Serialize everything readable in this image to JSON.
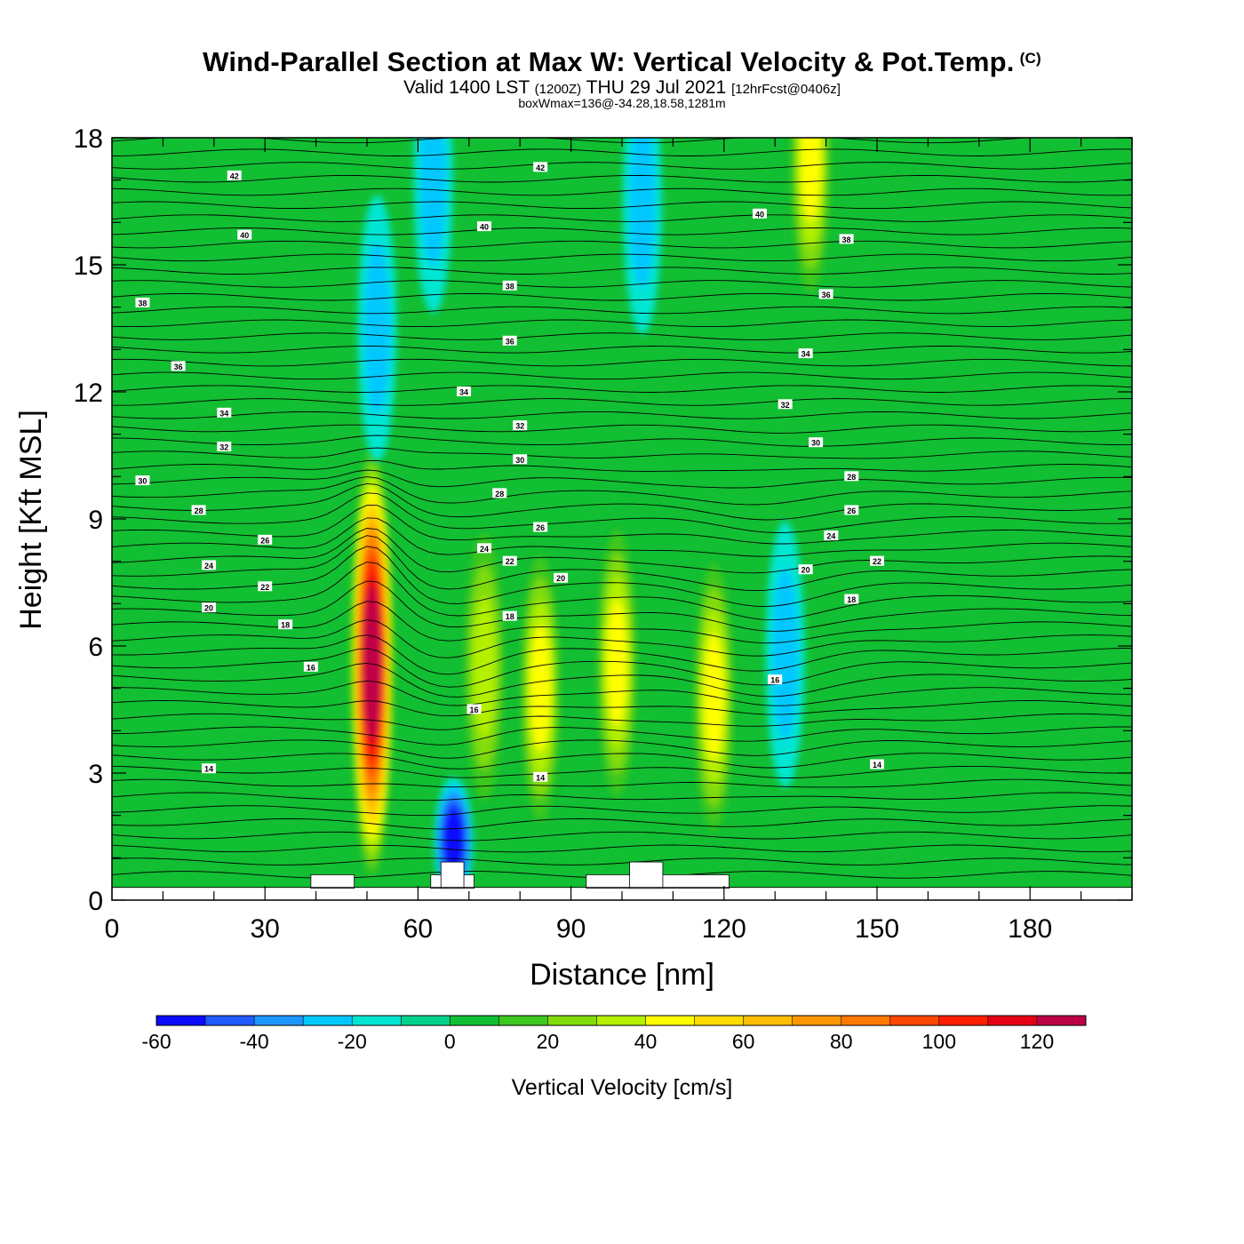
{
  "header": {
    "title": "Wind-Parallel Section at Max W: Vertical Velocity & Pot.Temp.",
    "copyright_mark": "(C)",
    "valid_prefix": "Valid 1400 LST",
    "valid_zulu": "(1200Z)",
    "valid_date": "THU 29 Jul 2021",
    "forecast": "[12hrFcst@0406z]",
    "box_wmax": "boxWmax=136@-34.28,18.58,1281m"
  },
  "chart_data": {
    "type": "heatmap",
    "xlabel": "Distance [nm]",
    "ylabel": "Height [Kft MSL]",
    "xlim": [
      0,
      200
    ],
    "ylim": [
      0,
      18
    ],
    "xticks": [
      0,
      30,
      60,
      90,
      120,
      150,
      180
    ],
    "yticks": [
      0,
      3,
      6,
      9,
      12,
      15,
      18
    ],
    "colorbar": {
      "title": "Vertical Velocity [cm/s]",
      "levels": [
        -60,
        -50,
        -40,
        -30,
        -20,
        -10,
        0,
        10,
        20,
        30,
        40,
        50,
        60,
        70,
        80,
        90,
        100,
        110,
        120,
        130
      ],
      "tick_labels": [
        -60,
        -40,
        -20,
        0,
        20,
        40,
        60,
        80,
        100,
        120
      ],
      "colors": [
        "#0a0aff",
        "#1e5aff",
        "#1e96ff",
        "#00c8ff",
        "#00e6d2",
        "#00d28c",
        "#12be32",
        "#3cc81e",
        "#82dc0a",
        "#b4f000",
        "#ffff00",
        "#ffdc00",
        "#ffbe00",
        "#ff9600",
        "#ff7800",
        "#ff4600",
        "#ff1e00",
        "#e60014",
        "#be0046"
      ]
    },
    "background_w": 0,
    "w_features": [
      {
        "x": 51,
        "y": 5.6,
        "w_max": 120
      },
      {
        "x": 67,
        "y": 1.4,
        "w_min": -60
      },
      {
        "x": 84,
        "y": 5.0,
        "w_max": 40
      },
      {
        "x": 99,
        "y": 5.6,
        "w_max": 40
      },
      {
        "x": 118,
        "y": 4.8,
        "w_max": 40
      },
      {
        "x": 137,
        "y": 17.5,
        "w_max": 40
      },
      {
        "x": 73,
        "y": 5.5,
        "w_max": 30
      },
      {
        "x": 52,
        "y": 13.5,
        "w_min": -20
      },
      {
        "x": 63,
        "y": 17.0,
        "w_min": -20
      },
      {
        "x": 132,
        "y": 5.8,
        "w_min": -20
      },
      {
        "x": 104,
        "y": 16.5,
        "w_min": -20
      }
    ],
    "terrain": [
      {
        "x": [
          39,
          47.5
        ],
        "top": 0.6
      },
      {
        "x": [
          62.5,
          71
        ],
        "top": 0.6
      },
      {
        "x": [
          64.5,
          69
        ],
        "top": 0.9
      },
      {
        "x": [
          93,
          121
        ],
        "top": 0.6
      },
      {
        "x": [
          101.5,
          108
        ],
        "top": 0.9
      }
    ],
    "terrain_floor": 0.3,
    "contour_labels": [
      {
        "text": "42",
        "x": 24,
        "y": 17.1
      },
      {
        "text": "42",
        "x": 84,
        "y": 17.3
      },
      {
        "text": "40",
        "x": 26,
        "y": 15.7
      },
      {
        "text": "40",
        "x": 73,
        "y": 15.9
      },
      {
        "text": "40",
        "x": 127,
        "y": 16.2
      },
      {
        "text": "38",
        "x": 6,
        "y": 14.1
      },
      {
        "text": "38",
        "x": 78,
        "y": 14.5
      },
      {
        "text": "38",
        "x": 144,
        "y": 15.6
      },
      {
        "text": "36",
        "x": 13,
        "y": 12.6
      },
      {
        "text": "36",
        "x": 78,
        "y": 13.2
      },
      {
        "text": "36",
        "x": 140,
        "y": 14.3
      },
      {
        "text": "34",
        "x": 22,
        "y": 11.5
      },
      {
        "text": "34",
        "x": 69,
        "y": 12.0
      },
      {
        "text": "34",
        "x": 136,
        "y": 12.9
      },
      {
        "text": "32",
        "x": 22,
        "y": 10.7
      },
      {
        "text": "32",
        "x": 80,
        "y": 11.2
      },
      {
        "text": "32",
        "x": 132,
        "y": 11.7
      },
      {
        "text": "30",
        "x": 6,
        "y": 9.9
      },
      {
        "text": "30",
        "x": 80,
        "y": 10.4
      },
      {
        "text": "30",
        "x": 138,
        "y": 10.8
      },
      {
        "text": "28",
        "x": 17,
        "y": 9.2
      },
      {
        "text": "28",
        "x": 76,
        "y": 9.6
      },
      {
        "text": "28",
        "x": 145,
        "y": 10.0
      },
      {
        "text": "26",
        "x": 30,
        "y": 8.5
      },
      {
        "text": "26",
        "x": 84,
        "y": 8.8
      },
      {
        "text": "26",
        "x": 145,
        "y": 9.2
      },
      {
        "text": "24",
        "x": 19,
        "y": 7.9
      },
      {
        "text": "24",
        "x": 73,
        "y": 8.3
      },
      {
        "text": "24",
        "x": 141,
        "y": 8.6
      },
      {
        "text": "22",
        "x": 30,
        "y": 7.4
      },
      {
        "text": "22",
        "x": 78,
        "y": 8.0
      },
      {
        "text": "22",
        "x": 150,
        "y": 8.0
      },
      {
        "text": "20",
        "x": 19,
        "y": 6.9
      },
      {
        "text": "20",
        "x": 88,
        "y": 7.6
      },
      {
        "text": "20",
        "x": 136,
        "y": 7.8
      },
      {
        "text": "18",
        "x": 34,
        "y": 6.5
      },
      {
        "text": "18",
        "x": 78,
        "y": 6.7
      },
      {
        "text": "18",
        "x": 145,
        "y": 7.1
      },
      {
        "text": "16",
        "x": 39,
        "y": 5.5
      },
      {
        "text": "16",
        "x": 71,
        "y": 4.5
      },
      {
        "text": "16",
        "x": 130,
        "y": 5.2
      },
      {
        "text": "14",
        "x": 19,
        "y": 3.1
      },
      {
        "text": "14",
        "x": 84,
        "y": 2.9
      },
      {
        "text": "14",
        "x": 150,
        "y": 3.2
      }
    ]
  }
}
